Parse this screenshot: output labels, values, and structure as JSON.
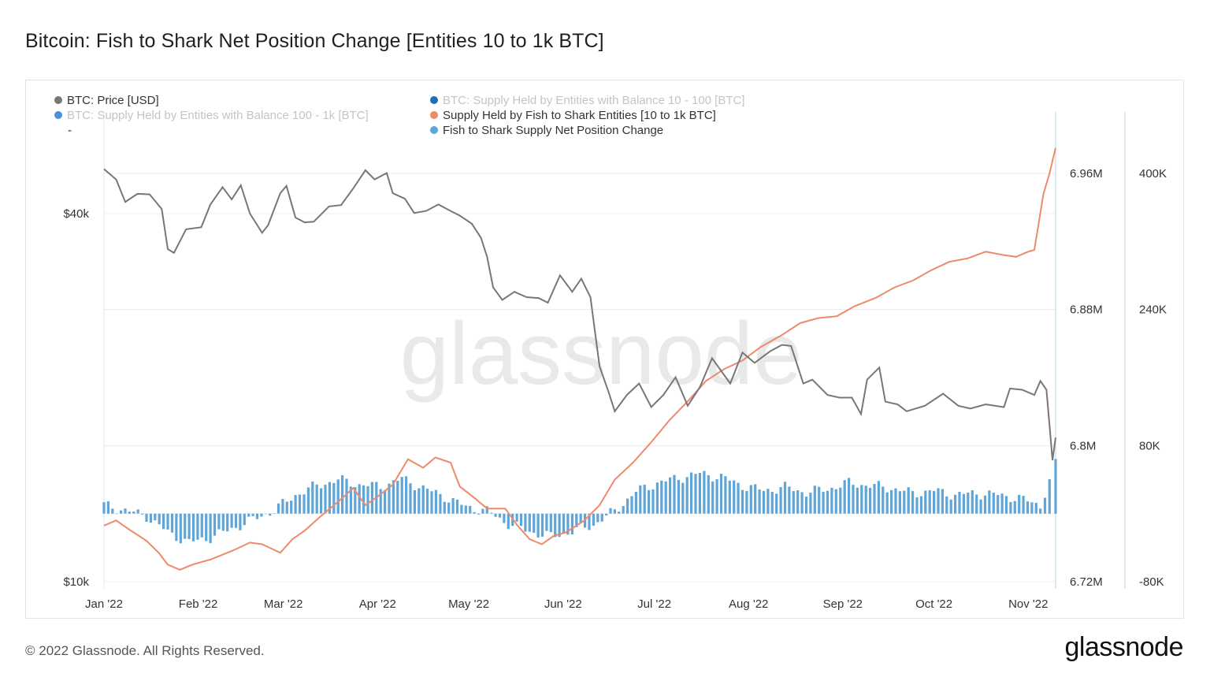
{
  "header": {
    "title": "Bitcoin: Fish to Shark Net Position Change [Entities 10 to 1k BTC]"
  },
  "footer": {
    "copyright": "© 2022 Glassnode. All Rights Reserved.",
    "logo_text": "glassnode"
  },
  "watermark": "glassnode",
  "legend": [
    {
      "label": "BTC: Price [USD]",
      "color": "#777777",
      "active": true
    },
    {
      "label": "BTC: Supply Held by Entities with Balance 10 - 100 [BTC]",
      "color": "#1f6fb5",
      "active": false
    },
    {
      "label": "BTC: Supply Held by Entities with Balance 100 - 1k [BTC]",
      "color": "#4a90d9",
      "active": false
    },
    {
      "label": "Supply Held by Fish to Shark Entities [10 to 1k BTC]",
      "color": "#ee8a6b",
      "active": true
    },
    {
      "label": "Fish to Shark Supply Net Position Change",
      "color": "#5ea5d8",
      "active": true
    },
    {
      "label": "-",
      "color": "#333333",
      "active": true
    }
  ],
  "chart_data": {
    "type": "line",
    "title": "Bitcoin: Fish to Shark Net Position Change [Entities 10 to 1k BTC]",
    "x_tick_labels": [
      "Jan '22",
      "Feb '22",
      "Mar '22",
      "Apr '22",
      "May '22",
      "Jun '22",
      "Jul '22",
      "Aug '22",
      "Sep '22",
      "Oct '22",
      "Nov '22"
    ],
    "y_left": {
      "scale": "log",
      "tick_labels": [
        "$40k",
        "$10k"
      ],
      "ticks": [
        40000,
        10000
      ]
    },
    "y_right_supply": {
      "tick_labels": [
        "6.96M",
        "6.88M",
        "6.8M",
        "6.72M"
      ],
      "ticks": [
        6960000,
        6880000,
        6800000,
        6720000
      ],
      "range": [
        6720000,
        7000000
      ]
    },
    "y_right_change": {
      "tick_labels": [
        "400K",
        "240K",
        "80K",
        "-80K"
      ],
      "ticks": [
        400000,
        240000,
        80000,
        -80000
      ],
      "range": [
        -80000,
        480000
      ]
    },
    "date_range": [
      "2022-01-01",
      "2022-11-10"
    ],
    "series": [
      {
        "name": "BTC: Price [USD]",
        "axis": "left",
        "color": "#777777",
        "points": [
          [
            "2022-01-01",
            47300
          ],
          [
            "2022-01-05",
            45500
          ],
          [
            "2022-01-08",
            41800
          ],
          [
            "2022-01-12",
            43100
          ],
          [
            "2022-01-16",
            43000
          ],
          [
            "2022-01-20",
            40700
          ],
          [
            "2022-01-22",
            35000
          ],
          [
            "2022-01-24",
            34500
          ],
          [
            "2022-01-28",
            37700
          ],
          [
            "2022-02-02",
            38000
          ],
          [
            "2022-02-05",
            41400
          ],
          [
            "2022-02-09",
            44200
          ],
          [
            "2022-02-12",
            42200
          ],
          [
            "2022-02-15",
            44500
          ],
          [
            "2022-02-18",
            40000
          ],
          [
            "2022-02-22",
            37200
          ],
          [
            "2022-02-24",
            38300
          ],
          [
            "2022-02-28",
            43200
          ],
          [
            "2022-03-02",
            44400
          ],
          [
            "2022-03-05",
            39400
          ],
          [
            "2022-03-08",
            38700
          ],
          [
            "2022-03-11",
            38800
          ],
          [
            "2022-03-16",
            41100
          ],
          [
            "2022-03-20",
            41300
          ],
          [
            "2022-03-24",
            44000
          ],
          [
            "2022-03-28",
            47100
          ],
          [
            "2022-03-31",
            45500
          ],
          [
            "2022-04-04",
            46600
          ],
          [
            "2022-04-06",
            43200
          ],
          [
            "2022-04-10",
            42300
          ],
          [
            "2022-04-13",
            40100
          ],
          [
            "2022-04-17",
            40400
          ],
          [
            "2022-04-21",
            41400
          ],
          [
            "2022-04-25",
            40400
          ],
          [
            "2022-04-28",
            39700
          ],
          [
            "2022-05-02",
            38500
          ],
          [
            "2022-05-05",
            36500
          ],
          [
            "2022-05-07",
            34000
          ],
          [
            "2022-05-09",
            30300
          ],
          [
            "2022-05-12",
            28900
          ],
          [
            "2022-05-16",
            29800
          ],
          [
            "2022-05-20",
            29200
          ],
          [
            "2022-05-24",
            29100
          ],
          [
            "2022-05-27",
            28600
          ],
          [
            "2022-05-31",
            31700
          ],
          [
            "2022-06-04",
            29800
          ],
          [
            "2022-06-07",
            31300
          ],
          [
            "2022-06-10",
            29200
          ],
          [
            "2022-06-13",
            22500
          ],
          [
            "2022-06-16",
            20400
          ],
          [
            "2022-06-18",
            19000
          ],
          [
            "2022-06-22",
            20200
          ],
          [
            "2022-06-26",
            21100
          ],
          [
            "2022-06-30",
            19300
          ],
          [
            "2022-07-04",
            20200
          ],
          [
            "2022-07-08",
            21600
          ],
          [
            "2022-07-12",
            19400
          ],
          [
            "2022-07-16",
            20800
          ],
          [
            "2022-07-20",
            23200
          ],
          [
            "2022-07-26",
            21100
          ],
          [
            "2022-07-30",
            23700
          ],
          [
            "2022-08-03",
            22800
          ],
          [
            "2022-08-08",
            23800
          ],
          [
            "2022-08-12",
            24400
          ],
          [
            "2022-08-15",
            24300
          ],
          [
            "2022-08-19",
            21100
          ],
          [
            "2022-08-22",
            21400
          ],
          [
            "2022-08-27",
            20200
          ],
          [
            "2022-08-31",
            20000
          ],
          [
            "2022-09-04",
            20000
          ],
          [
            "2022-09-07",
            18800
          ],
          [
            "2022-09-09",
            21400
          ],
          [
            "2022-09-13",
            22400
          ],
          [
            "2022-09-15",
            19700
          ],
          [
            "2022-09-19",
            19500
          ],
          [
            "2022-09-22",
            19000
          ],
          [
            "2022-09-28",
            19400
          ],
          [
            "2022-10-04",
            20300
          ],
          [
            "2022-10-09",
            19400
          ],
          [
            "2022-10-13",
            19200
          ],
          [
            "2022-10-18",
            19500
          ],
          [
            "2022-10-24",
            19300
          ],
          [
            "2022-10-26",
            20700
          ],
          [
            "2022-10-30",
            20600
          ],
          [
            "2022-11-03",
            20200
          ],
          [
            "2022-11-05",
            21300
          ],
          [
            "2022-11-07",
            20600
          ],
          [
            "2022-11-09",
            15800
          ],
          [
            "2022-11-10",
            17200
          ]
        ]
      },
      {
        "name": "Supply Held by Fish to Shark Entities [10 to 1k BTC]",
        "axis": "right_supply",
        "color": "#ee8a6b",
        "points": [
          [
            "2022-01-01",
            6753000
          ],
          [
            "2022-01-05",
            6756000
          ],
          [
            "2022-01-09",
            6751000
          ],
          [
            "2022-01-15",
            6744000
          ],
          [
            "2022-01-19",
            6737000
          ],
          [
            "2022-01-22",
            6730000
          ],
          [
            "2022-01-26",
            6727000
          ],
          [
            "2022-01-30",
            6730000
          ],
          [
            "2022-02-05",
            6733000
          ],
          [
            "2022-02-12",
            6738000
          ],
          [
            "2022-02-18",
            6743000
          ],
          [
            "2022-02-22",
            6742000
          ],
          [
            "2022-02-28",
            6737000
          ],
          [
            "2022-03-04",
            6745000
          ],
          [
            "2022-03-08",
            6750000
          ],
          [
            "2022-03-13",
            6758000
          ],
          [
            "2022-03-19",
            6767000
          ],
          [
            "2022-03-24",
            6775000
          ],
          [
            "2022-03-28",
            6765000
          ],
          [
            "2022-04-01",
            6770000
          ],
          [
            "2022-04-06",
            6777000
          ],
          [
            "2022-04-11",
            6792000
          ],
          [
            "2022-04-16",
            6787000
          ],
          [
            "2022-04-20",
            6793000
          ],
          [
            "2022-04-25",
            6790000
          ],
          [
            "2022-04-28",
            6776000
          ],
          [
            "2022-05-03",
            6769000
          ],
          [
            "2022-05-07",
            6763000
          ],
          [
            "2022-05-13",
            6763000
          ],
          [
            "2022-05-17",
            6753000
          ],
          [
            "2022-05-21",
            6745000
          ],
          [
            "2022-05-25",
            6742000
          ],
          [
            "2022-05-29",
            6747000
          ],
          [
            "2022-06-02",
            6749000
          ],
          [
            "2022-06-08",
            6756000
          ],
          [
            "2022-06-13",
            6765000
          ],
          [
            "2022-06-18",
            6780000
          ],
          [
            "2022-06-24",
            6790000
          ],
          [
            "2022-06-30",
            6802000
          ],
          [
            "2022-07-06",
            6815000
          ],
          [
            "2022-07-12",
            6826000
          ],
          [
            "2022-07-18",
            6838000
          ],
          [
            "2022-07-24",
            6845000
          ],
          [
            "2022-07-30",
            6850000
          ],
          [
            "2022-08-05",
            6858000
          ],
          [
            "2022-08-12",
            6865000
          ],
          [
            "2022-08-18",
            6872000
          ],
          [
            "2022-08-24",
            6875000
          ],
          [
            "2022-08-30",
            6876000
          ],
          [
            "2022-09-05",
            6882000
          ],
          [
            "2022-09-12",
            6887000
          ],
          [
            "2022-09-18",
            6893000
          ],
          [
            "2022-09-24",
            6897000
          ],
          [
            "2022-09-30",
            6903000
          ],
          [
            "2022-10-06",
            6908000
          ],
          [
            "2022-10-12",
            6910000
          ],
          [
            "2022-10-18",
            6914000
          ],
          [
            "2022-10-24",
            6912000
          ],
          [
            "2022-10-28",
            6911000
          ],
          [
            "2022-11-01",
            6914000
          ],
          [
            "2022-11-03",
            6915000
          ],
          [
            "2022-11-06",
            6948000
          ],
          [
            "2022-11-08",
            6960000
          ],
          [
            "2022-11-10",
            6975000
          ]
        ]
      },
      {
        "name": "Fish to Shark Supply Net Position Change",
        "type": "bar",
        "axis": "right_change",
        "color": "#5ea5d8",
        "points": [
          [
            "2022-01-01",
            10000
          ],
          [
            "2022-01-08",
            4000
          ],
          [
            "2022-01-15",
            -3000
          ],
          [
            "2022-01-22",
            -22000
          ],
          [
            "2022-01-29",
            -34000
          ],
          [
            "2022-02-05",
            -28000
          ],
          [
            "2022-02-12",
            -18000
          ],
          [
            "2022-02-19",
            -7000
          ],
          [
            "2022-02-26",
            4000
          ],
          [
            "2022-03-05",
            22000
          ],
          [
            "2022-03-12",
            33000
          ],
          [
            "2022-03-19",
            40000
          ],
          [
            "2022-03-26",
            34000
          ],
          [
            "2022-04-02",
            32000
          ],
          [
            "2022-04-09",
            41000
          ],
          [
            "2022-04-16",
            30000
          ],
          [
            "2022-04-23",
            20000
          ],
          [
            "2022-04-30",
            8000
          ],
          [
            "2022-05-07",
            3000
          ],
          [
            "2022-05-14",
            -12000
          ],
          [
            "2022-05-21",
            -21000
          ],
          [
            "2022-05-28",
            -27000
          ],
          [
            "2022-06-04",
            -21000
          ],
          [
            "2022-06-11",
            -13000
          ],
          [
            "2022-06-18",
            3000
          ],
          [
            "2022-06-25",
            26000
          ],
          [
            "2022-07-02",
            36000
          ],
          [
            "2022-07-09",
            42000
          ],
          [
            "2022-07-16",
            47000
          ],
          [
            "2022-07-23",
            43000
          ],
          [
            "2022-07-30",
            33000
          ],
          [
            "2022-08-06",
            27000
          ],
          [
            "2022-08-13",
            31000
          ],
          [
            "2022-08-20",
            25000
          ],
          [
            "2022-08-27",
            29000
          ],
          [
            "2022-09-03",
            36000
          ],
          [
            "2022-09-10",
            33000
          ],
          [
            "2022-09-17",
            30000
          ],
          [
            "2022-09-24",
            24000
          ],
          [
            "2022-10-01",
            27000
          ],
          [
            "2022-10-08",
            22000
          ],
          [
            "2022-10-15",
            24000
          ],
          [
            "2022-10-22",
            22000
          ],
          [
            "2022-10-29",
            18000
          ],
          [
            "2022-11-05",
            10000
          ],
          [
            "2022-11-08",
            38000
          ],
          [
            "2022-11-10",
            58000
          ]
        ]
      }
    ]
  }
}
